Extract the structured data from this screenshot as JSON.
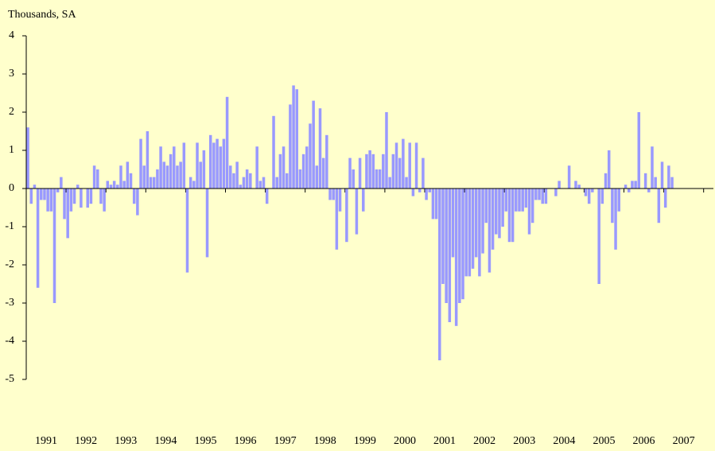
{
  "chart_data": {
    "type": "bar",
    "title": "Thousands, SA",
    "color": "#9999ff",
    "ylim": [
      -5,
      4
    ],
    "yticks": [
      -5,
      -4,
      -3,
      -2,
      -1,
      0,
      1,
      2,
      3,
      4
    ],
    "grid": false,
    "categories": [
      null,
      null,
      null,
      null,
      null,
      null,
      "1991",
      null,
      null,
      null,
      null,
      null,
      null,
      null,
      null,
      null,
      null,
      null,
      "1992",
      null,
      null,
      null,
      null,
      null,
      null,
      null,
      null,
      null,
      null,
      null,
      "1993",
      null,
      null,
      null,
      null,
      null,
      null,
      null,
      null,
      null,
      null,
      null,
      "1994",
      null,
      null,
      null,
      null,
      null,
      null,
      null,
      null,
      null,
      null,
      null,
      "1995",
      null,
      null,
      null,
      null,
      null,
      null,
      null,
      null,
      null,
      null,
      null,
      "1996",
      null,
      null,
      null,
      null,
      null,
      null,
      null,
      null,
      null,
      null,
      null,
      "1997",
      null,
      null,
      null,
      null,
      null,
      null,
      null,
      null,
      null,
      null,
      null,
      "1998",
      null,
      null,
      null,
      null,
      null,
      null,
      null,
      null,
      null,
      null,
      null,
      "1999",
      null,
      null,
      null,
      null,
      null,
      null,
      null,
      null,
      null,
      null,
      null,
      "2000",
      null,
      null,
      null,
      null,
      null,
      null,
      null,
      null,
      null,
      null,
      null,
      "2001",
      null,
      null,
      null,
      null,
      null,
      null,
      null,
      null,
      null,
      null,
      null,
      "2002",
      null,
      null,
      null,
      null,
      null,
      null,
      null,
      null,
      null,
      null,
      null,
      "2003",
      null,
      null,
      null,
      null,
      null,
      null,
      null,
      null,
      null,
      null,
      null,
      "2004",
      null,
      null,
      null,
      null,
      null,
      null,
      null,
      null,
      null,
      null,
      null,
      "2005",
      null,
      null,
      null,
      null,
      null,
      null,
      null,
      null,
      null,
      null,
      null,
      "2006",
      null,
      null,
      null,
      null,
      null,
      null,
      null,
      null,
      null,
      null,
      null,
      "2007",
      null,
      null,
      null,
      null,
      null
    ],
    "values": [
      1.6,
      -0.4,
      0.1,
      -2.6,
      -0.3,
      -0.3,
      -0.6,
      -0.6,
      -3.0,
      -0.1,
      0.3,
      -0.8,
      -1.3,
      -0.6,
      -0.4,
      0.1,
      -0.5,
      0,
      -0.5,
      -0.4,
      0.6,
      0.5,
      -0.4,
      -0.6,
      0.2,
      0.1,
      0.2,
      0.1,
      0.6,
      0.2,
      0.7,
      0.4,
      -0.4,
      -0.7,
      1.3,
      0.6,
      1.5,
      0.3,
      0.3,
      0.5,
      1.1,
      0.7,
      0.6,
      0.9,
      1.1,
      0.6,
      0.7,
      1.2,
      -2.2,
      0.3,
      0.2,
      1.2,
      0.7,
      1.0,
      -1.8,
      1.4,
      1.2,
      1.3,
      1.1,
      1.3,
      2.4,
      0.6,
      0.4,
      0.7,
      0.1,
      0.3,
      0.5,
      0.4,
      0,
      1.1,
      0.2,
      0.3,
      -0.4,
      0,
      1.9,
      0.3,
      0.9,
      1.1,
      0.4,
      2.2,
      2.7,
      2.6,
      0.5,
      0.9,
      1.1,
      1.7,
      2.3,
      0.6,
      2.1,
      0.8,
      1.4,
      -0.3,
      -0.3,
      -1.6,
      -0.6,
      0,
      -1.4,
      0.8,
      0.5,
      -1.2,
      0.8,
      -0.6,
      0.9,
      1.0,
      0.9,
      0.5,
      0.5,
      0.9,
      2.0,
      0.3,
      0.9,
      1.2,
      0.8,
      1.3,
      0.3,
      1.2,
      -0.2,
      1.2,
      -0.1,
      0.8,
      -0.3,
      -0.1,
      -0.8,
      -0.8,
      -4.5,
      -2.5,
      -3.0,
      -3.5,
      -1.8,
      -3.6,
      -3.0,
      -2.9,
      -2.3,
      -2.3,
      -2.1,
      -1.8,
      -2.3,
      -1.7,
      -0.9,
      -2.2,
      -1.6,
      -1.2,
      -1.3,
      -1.0,
      -0.6,
      -1.4,
      -1.4,
      -0.6,
      -0.6,
      -0.6,
      -0.5,
      -1.2,
      -0.9,
      -0.3,
      -0.3,
      -0.4,
      -0.4,
      0,
      0,
      -0.2,
      0.2,
      0,
      0,
      0.6,
      0,
      0.2,
      0.1,
      0,
      -0.2,
      -0.4,
      -0.1,
      0,
      -2.5,
      -0.4,
      0.4,
      1.0,
      -0.9,
      -1.6,
      -0.6,
      0,
      0.1,
      -0.1,
      0.2,
      0.2,
      2.0,
      0,
      0.4,
      -0.1,
      1.1,
      0.3,
      -0.9,
      0.7,
      -0.5,
      0.6,
      0.3,
      null,
      null,
      null,
      null,
      null,
      null,
      null,
      null,
      null
    ]
  }
}
